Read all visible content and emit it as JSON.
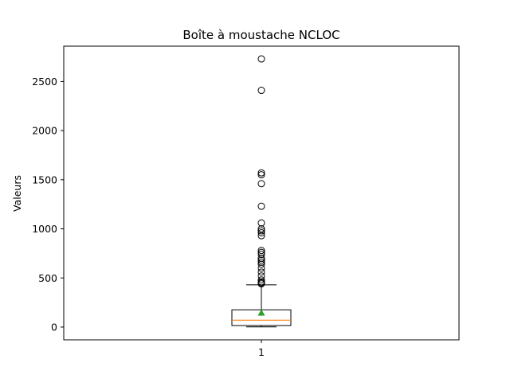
{
  "chart_data": {
    "type": "box",
    "title": "Boîte à moustache NCLOC",
    "xlabel": "",
    "ylabel": "Valeurs",
    "categories": [
      "1"
    ],
    "ylim": [
      -130,
      2860
    ],
    "yticks": [
      0,
      500,
      1000,
      1500,
      2000,
      2500
    ],
    "grid": false,
    "showmeans": true,
    "boxes": [
      {
        "category": "1",
        "whisker_low": 2,
        "q1": 15,
        "median": 70,
        "q3": 175,
        "whisker_high": 430,
        "mean": 145,
        "fliers": [
          2730,
          2410,
          1570,
          1550,
          1460,
          1230,
          1060,
          1000,
          980,
          960,
          930,
          780,
          760,
          740,
          700,
          680,
          660,
          640,
          600,
          560,
          520,
          480,
          460,
          450,
          440
        ]
      }
    ],
    "colors": {
      "box": "#000000",
      "median": "#ff7f0e",
      "mean": "#2ca02c",
      "flier": "#000000"
    }
  }
}
